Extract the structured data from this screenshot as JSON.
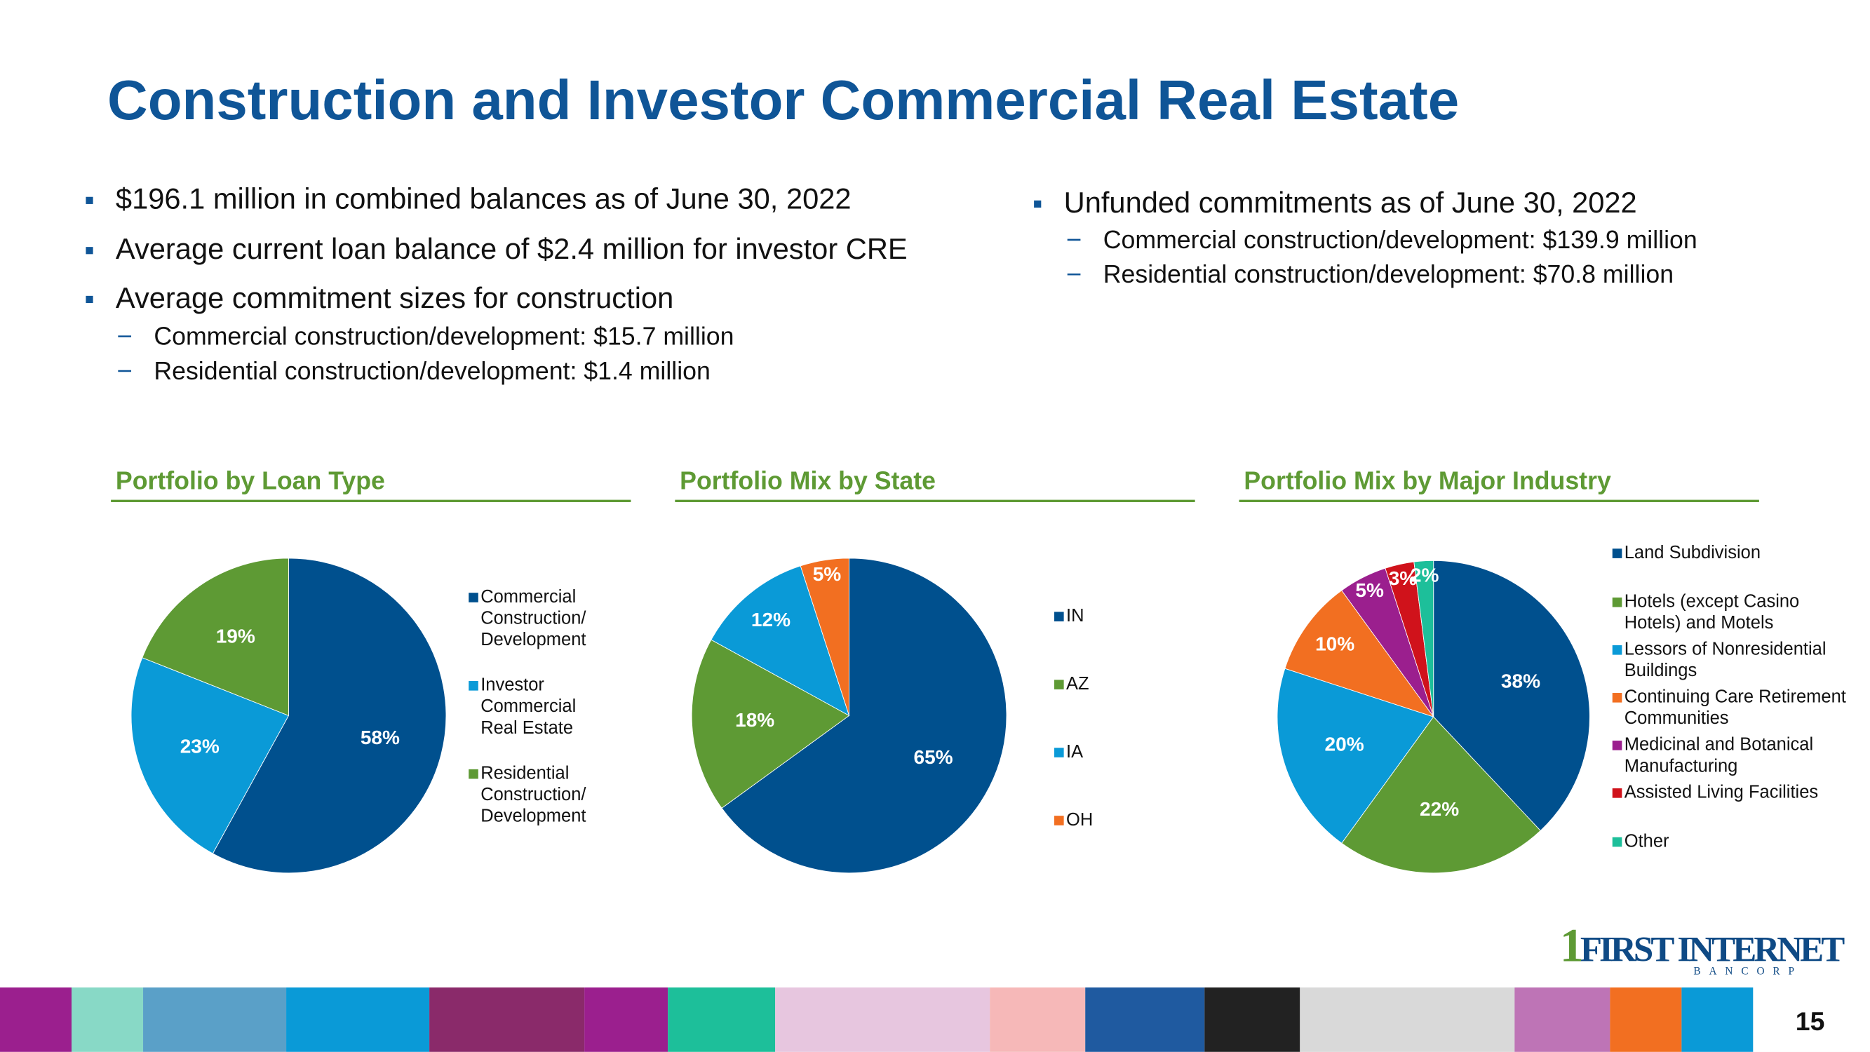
{
  "title": "Construction and Investor Commercial Real Estate",
  "left_bullets": [
    "$196.1 million in combined balances as of June 30, 2022",
    "Average current loan balance of $2.4 million for investor CRE",
    "Average commitment sizes for construction"
  ],
  "left_sub": [
    "Commercial construction/development: $15.7 million",
    "Residential construction/development: $1.4 million"
  ],
  "right_bullets": [
    "Unfunded commitments as of June 30, 2022"
  ],
  "right_sub": [
    "Commercial construction/development: $139.9 million",
    "Residential construction/development: $70.8 million"
  ],
  "logo": {
    "mark": "1",
    "name": "FIRST INTERNET",
    "sub": "BANCORP"
  },
  "page_number": "15",
  "chart_data": [
    {
      "type": "pie",
      "title": "Portfolio by Loan Type",
      "categories": [
        "Commercial Construction/ Development",
        "Investor Commercial Real Estate",
        "Residential Construction/ Development"
      ],
      "values": [
        58,
        23,
        19
      ],
      "value_labels": [
        "58%",
        "23%",
        "19%"
      ],
      "colors": [
        "#00508e",
        "#0a9ad7",
        "#5e9a34"
      ]
    },
    {
      "type": "pie",
      "title": "Portfolio Mix by State",
      "categories": [
        "IN",
        "AZ",
        "IA",
        "OH"
      ],
      "values": [
        65,
        18,
        12,
        5
      ],
      "value_labels": [
        "65%",
        "18%",
        "12%",
        "5%"
      ],
      "colors": [
        "#00508e",
        "#5e9a34",
        "#0a9ad7",
        "#f26f21"
      ]
    },
    {
      "type": "pie",
      "title": "Portfolio Mix by Major Industry",
      "categories": [
        "Land Subdivision",
        "Hotels (except Casino Hotels) and Motels",
        "Lessors of Nonresidential Buildings",
        "Continuing Care Retirement Communities",
        "Medicinal and Botanical Manufacturing",
        "Assisted Living Facilities",
        "Other"
      ],
      "values": [
        38,
        22,
        20,
        10,
        5,
        3,
        2
      ],
      "value_labels": [
        "38%",
        "22%",
        "20%",
        "10%",
        "5%",
        "3%",
        "2%"
      ],
      "colors": [
        "#00508e",
        "#5e9a34",
        "#0a9ad7",
        "#f26f21",
        "#9b1f8e",
        "#d0121b",
        "#1dbf9a"
      ]
    }
  ]
}
